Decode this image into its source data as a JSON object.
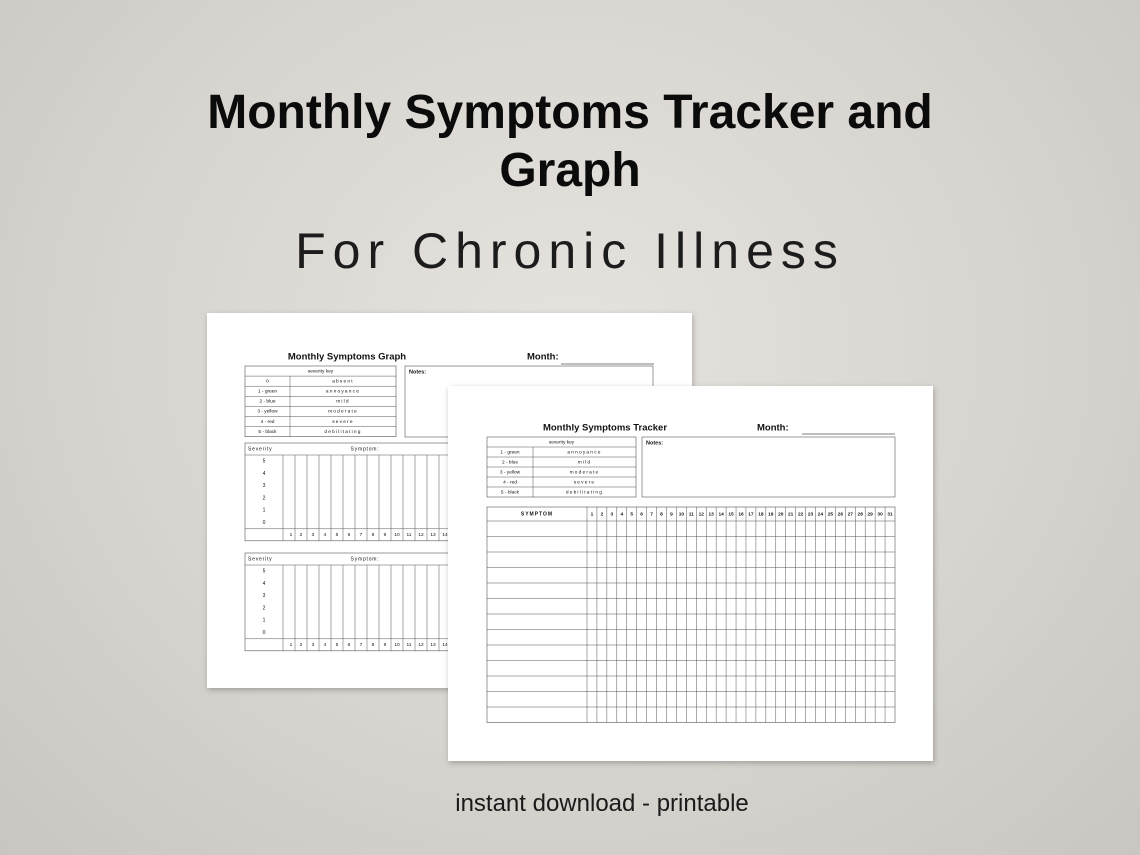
{
  "header": {
    "title": "Monthly Symptoms Tracker and Graph",
    "subtitle": "For Chronic Illness"
  },
  "graph_page": {
    "title": "Monthly Symptoms Graph",
    "month_label": "Month:",
    "notes_label": "Notes:",
    "severity_key": {
      "heading": "severity key",
      "rows": [
        [
          "0",
          "absent"
        ],
        [
          "1 - green",
          "annoyance"
        ],
        [
          "2 - blue",
          "mild"
        ],
        [
          "3 - yellow",
          "moderate"
        ],
        [
          "4 - red",
          "severe"
        ],
        [
          "5 - black",
          "debilitating"
        ]
      ]
    },
    "charts": [
      {
        "severity_label": "Severity",
        "symptom_label": "Symptom:",
        "levels": [
          5,
          4,
          3,
          2,
          1,
          0
        ],
        "days": [
          1,
          2,
          3,
          4,
          5,
          6,
          7,
          8,
          9,
          10,
          11,
          12,
          13,
          14
        ]
      },
      {
        "severity_label": "Severity",
        "symptom_label": "Symptom:",
        "levels": [
          5,
          4,
          3,
          2,
          1,
          0
        ],
        "days": [
          1,
          2,
          3,
          4,
          5,
          6,
          7,
          8,
          9,
          10,
          11,
          12,
          13,
          14
        ]
      }
    ]
  },
  "tracker_page": {
    "title": "Monthly Symptoms Tracker",
    "month_label": "Month:",
    "notes_label": "Notes:",
    "severity_key": {
      "heading": "severity key",
      "rows": [
        [
          "1 - green",
          "annoyance"
        ],
        [
          "2 - blue",
          "mild"
        ],
        [
          "3 - yellow",
          "moderate"
        ],
        [
          "4 - red",
          "severe"
        ],
        [
          "5 - black",
          "debilitating"
        ]
      ]
    },
    "table": {
      "header": "SYMPTOM",
      "days": [
        1,
        2,
        3,
        4,
        5,
        6,
        7,
        8,
        9,
        10,
        11,
        12,
        13,
        14,
        15,
        16,
        17,
        18,
        19,
        20,
        21,
        22,
        23,
        24,
        25,
        26,
        27,
        28,
        29,
        30,
        31
      ]
    }
  },
  "footer": "instant download - printable"
}
